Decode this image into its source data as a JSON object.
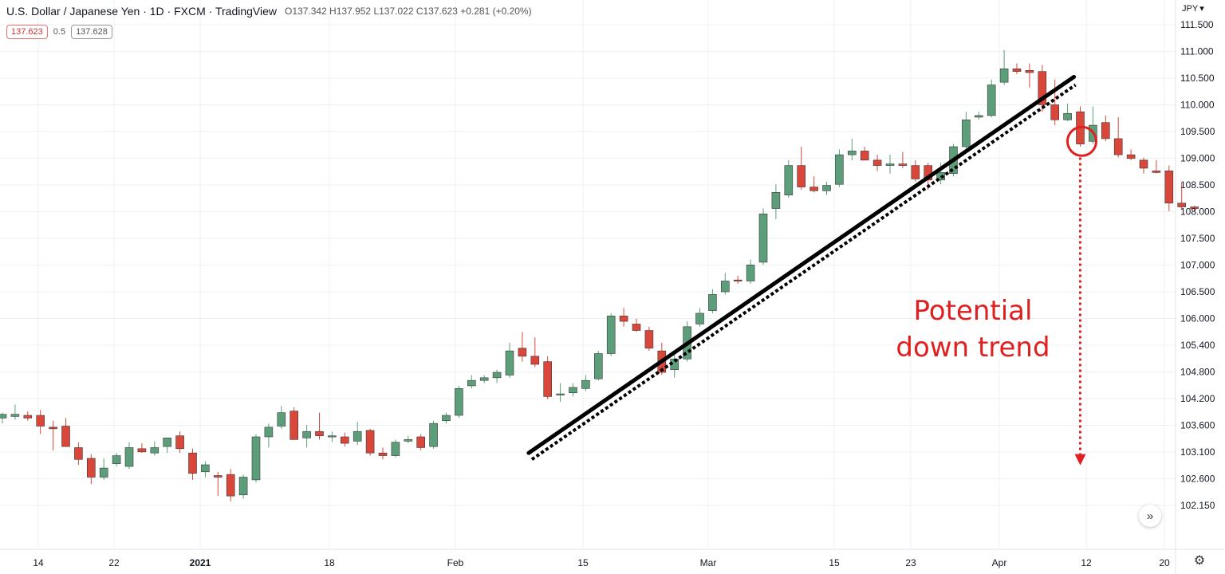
{
  "header": {
    "symbol": "U.S. Dollar / Japanese Yen · 1D · FXCM · TradingView",
    "ohlc": "O137.342 H137.952 L137.022 C137.623 +0.281 (+0.20%)",
    "sell_price": "137.623",
    "spread": "0.5",
    "buy_price": "137.628",
    "currency": "JPY",
    "currency_icon": "chevron-down-icon"
  },
  "controls": {
    "scroll_icon": "double-chevron-right-icon",
    "settings_icon": "gear-icon"
  },
  "chart_data": {
    "type": "candlestick",
    "title": "U.S. Dollar / Japanese Yen",
    "ylim": [
      101.9,
      111.8
    ],
    "y_ticks": [
      "111.500",
      "111.000",
      "110.500",
      "110.000",
      "109.500",
      "109.000",
      "108.500",
      "108.000",
      "107.500",
      "107.000",
      "106.500",
      "106.000",
      "105.400",
      "104.800",
      "104.200",
      "103.600",
      "103.100",
      "102.600",
      "102.150"
    ],
    "x_ticks": [
      {
        "label": "14",
        "bold": false
      },
      {
        "label": "22",
        "bold": false
      },
      {
        "label": "2021",
        "bold": true
      },
      {
        "label": "18",
        "bold": false
      },
      {
        "label": "Feb",
        "bold": false
      },
      {
        "label": "15",
        "bold": false
      },
      {
        "label": "Mar",
        "bold": false
      },
      {
        "label": "15",
        "bold": false
      },
      {
        "label": "23",
        "bold": false
      },
      {
        "label": "Apr",
        "bold": false
      },
      {
        "label": "12",
        "bold": false
      },
      {
        "label": "20",
        "bold": false
      }
    ],
    "up_color": "#5c9e79",
    "down_color": "#d9473b",
    "candles": [
      [
        104.15,
        104.25,
        104.05,
        104.22
      ],
      [
        104.18,
        104.4,
        104.12,
        104.22
      ],
      [
        104.2,
        104.28,
        104.1,
        104.15
      ],
      [
        104.2,
        104.3,
        103.85,
        104.0
      ],
      [
        103.98,
        104.1,
        103.55,
        103.95
      ],
      [
        104.0,
        104.15,
        103.62,
        103.62
      ],
      [
        103.6,
        103.7,
        103.28,
        103.38
      ],
      [
        103.4,
        103.48,
        102.92,
        103.05
      ],
      [
        103.05,
        103.4,
        103.0,
        103.22
      ],
      [
        103.3,
        103.5,
        103.25,
        103.45
      ],
      [
        103.25,
        103.7,
        103.2,
        103.6
      ],
      [
        103.58,
        103.68,
        103.5,
        103.52
      ],
      [
        103.5,
        103.72,
        103.45,
        103.6
      ],
      [
        103.62,
        103.75,
        103.5,
        103.78
      ],
      [
        103.82,
        103.9,
        103.5,
        103.58
      ],
      [
        103.5,
        103.58,
        103.0,
        103.12
      ],
      [
        103.15,
        103.35,
        103.05,
        103.28
      ],
      [
        103.08,
        103.15,
        102.7,
        103.05
      ],
      [
        103.1,
        103.2,
        102.6,
        102.7
      ],
      [
        102.72,
        103.1,
        102.65,
        103.05
      ],
      [
        103.0,
        103.85,
        102.95,
        103.8
      ],
      [
        103.8,
        104.05,
        103.6,
        103.98
      ],
      [
        104.0,
        104.38,
        103.95,
        104.25
      ],
      [
        104.28,
        104.35,
        103.75,
        103.75
      ],
      [
        103.78,
        104.02,
        103.6,
        103.9
      ],
      [
        103.9,
        104.25,
        103.75,
        103.82
      ],
      [
        103.82,
        103.9,
        103.7,
        103.82
      ],
      [
        103.8,
        103.88,
        103.62,
        103.68
      ],
      [
        103.72,
        104.08,
        103.65,
        103.9
      ],
      [
        103.92,
        103.95,
        103.45,
        103.5
      ],
      [
        103.5,
        103.6,
        103.38,
        103.45
      ],
      [
        103.45,
        103.75,
        103.42,
        103.7
      ],
      [
        103.72,
        103.82,
        103.68,
        103.75
      ],
      [
        103.8,
        103.85,
        103.55,
        103.6
      ],
      [
        103.62,
        104.1,
        103.58,
        104.05
      ],
      [
        104.1,
        104.25,
        104.05,
        104.2
      ],
      [
        104.2,
        104.75,
        104.15,
        104.7
      ],
      [
        104.75,
        104.95,
        104.7,
        104.85
      ],
      [
        104.85,
        104.95,
        104.8,
        104.9
      ],
      [
        104.9,
        105.05,
        104.8,
        105.0
      ],
      [
        104.95,
        105.55,
        104.9,
        105.4
      ],
      [
        105.45,
        105.75,
        105.2,
        105.3
      ],
      [
        105.3,
        105.65,
        105.1,
        105.15
      ],
      [
        105.2,
        105.3,
        104.5,
        104.55
      ],
      [
        104.58,
        104.8,
        104.45,
        104.6
      ],
      [
        104.62,
        104.8,
        104.55,
        104.72
      ],
      [
        104.7,
        104.95,
        104.65,
        104.85
      ],
      [
        104.88,
        105.4,
        104.85,
        105.35
      ],
      [
        105.35,
        106.1,
        105.3,
        106.05
      ],
      [
        106.05,
        106.2,
        105.85,
        105.95
      ],
      [
        105.9,
        106.0,
        105.75,
        105.78
      ],
      [
        105.78,
        105.85,
        105.4,
        105.45
      ],
      [
        105.4,
        105.55,
        104.95,
        105.0
      ],
      [
        105.05,
        105.4,
        104.9,
        105.25
      ],
      [
        105.25,
        105.95,
        105.2,
        105.85
      ],
      [
        105.9,
        106.2,
        105.85,
        106.1
      ],
      [
        106.15,
        106.55,
        106.1,
        106.45
      ],
      [
        106.5,
        106.85,
        106.45,
        106.7
      ],
      [
        106.72,
        106.8,
        106.65,
        106.7
      ],
      [
        106.7,
        107.1,
        106.65,
        107.0
      ],
      [
        107.05,
        108.05,
        107.0,
        107.95
      ],
      [
        108.05,
        108.5,
        107.85,
        108.35
      ],
      [
        108.3,
        108.95,
        108.25,
        108.85
      ],
      [
        108.85,
        109.2,
        108.4,
        108.45
      ],
      [
        108.45,
        108.65,
        108.35,
        108.38
      ],
      [
        108.38,
        108.55,
        108.3,
        108.48
      ],
      [
        108.5,
        109.15,
        108.45,
        109.05
      ],
      [
        109.05,
        109.35,
        108.95,
        109.12
      ],
      [
        109.12,
        109.2,
        108.95,
        108.95
      ],
      [
        108.95,
        109.05,
        108.75,
        108.85
      ],
      [
        108.85,
        109.05,
        108.7,
        108.88
      ],
      [
        108.88,
        109.1,
        108.8,
        108.85
      ],
      [
        108.85,
        108.95,
        108.55,
        108.6
      ],
      [
        108.85,
        108.9,
        108.4,
        108.58
      ],
      [
        108.58,
        108.9,
        108.5,
        108.72
      ],
      [
        108.7,
        109.25,
        108.65,
        109.2
      ],
      [
        109.2,
        109.85,
        109.1,
        109.7
      ],
      [
        109.75,
        109.85,
        109.7,
        109.78
      ],
      [
        109.78,
        110.45,
        109.75,
        110.35
      ],
      [
        110.4,
        111.0,
        110.35,
        110.65
      ],
      [
        110.65,
        110.75,
        110.55,
        110.6
      ],
      [
        110.62,
        110.75,
        110.3,
        110.58
      ],
      [
        110.6,
        110.72,
        109.85,
        109.98
      ],
      [
        109.98,
        110.45,
        109.6,
        109.7
      ],
      [
        109.7,
        110.0,
        109.68,
        109.82
      ],
      [
        109.85,
        109.95,
        109.2,
        109.25
      ],
      [
        109.3,
        109.95,
        109.25,
        109.6
      ],
      [
        109.65,
        109.78,
        109.3,
        109.35
      ],
      [
        109.35,
        109.75,
        109.0,
        109.05
      ],
      [
        109.05,
        109.15,
        108.95,
        108.98
      ],
      [
        108.95,
        109.0,
        108.7,
        108.8
      ],
      [
        108.75,
        108.95,
        108.7,
        108.72
      ],
      [
        108.75,
        108.85,
        108.0,
        108.15
      ],
      [
        108.15,
        108.52,
        108.02,
        108.08
      ],
      [
        108.08,
        108.1,
        108.0,
        108.05
      ]
    ],
    "annotations": {
      "label_line1": "Potential",
      "label_line2": "down trend",
      "trendline_solid": {
        "from": [
          41,
          103.5
        ],
        "to": [
          84,
          110.5
        ]
      },
      "trendline_dotted": {
        "from": [
          41,
          103.38
        ],
        "to": [
          84,
          110.35
        ]
      },
      "circle_candle": 85,
      "circle_price": 109.3,
      "arrow_from": 109.0,
      "arrow_to": 103.3
    }
  }
}
